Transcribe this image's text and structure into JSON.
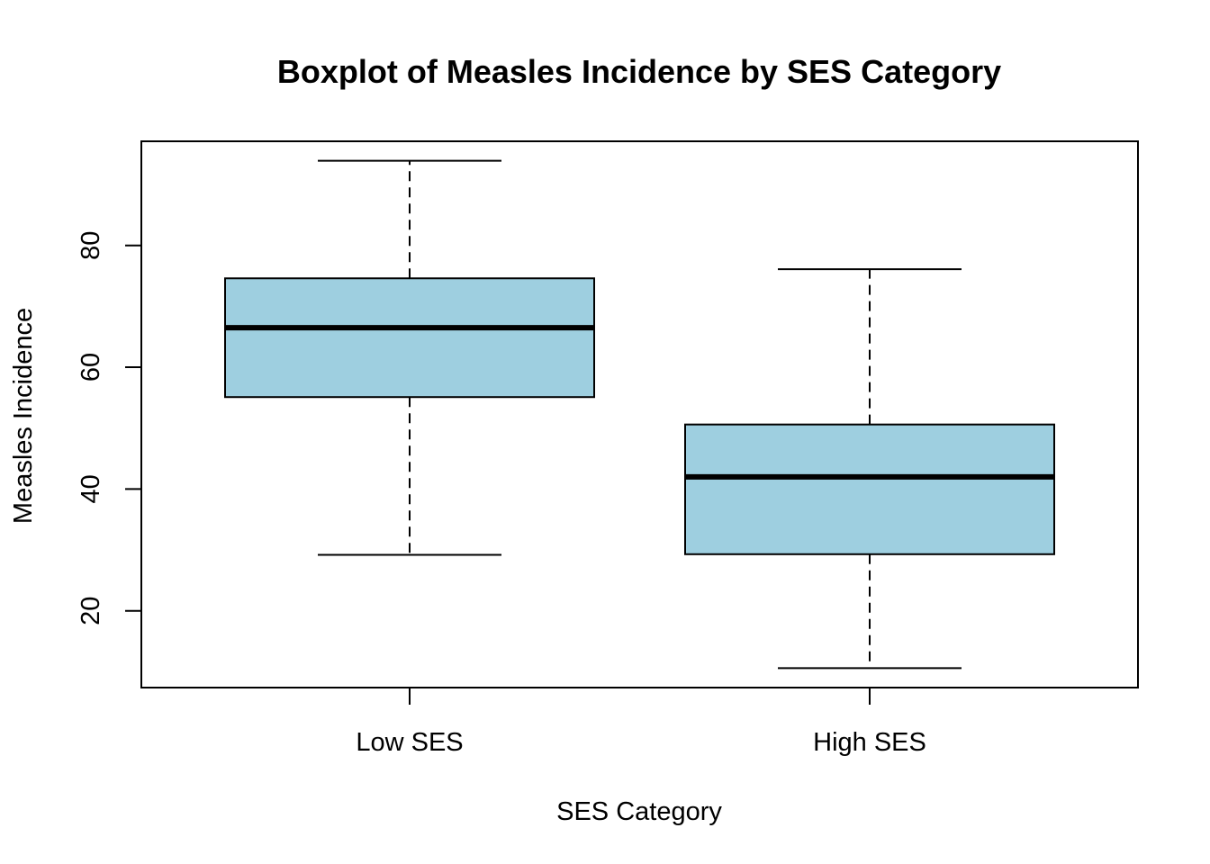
{
  "chart_data": {
    "type": "boxplot",
    "title": "Boxplot of Measles Incidence by SES Category",
    "xlabel": "SES Category",
    "ylabel": "Measles Incidence",
    "categories": [
      "Low SES",
      "High SES"
    ],
    "boxes": [
      {
        "category": "Low SES",
        "whisker_low": 29.2,
        "q1": 55.1,
        "median": 66.5,
        "q3": 74.6,
        "whisker_high": 93.9
      },
      {
        "category": "High SES",
        "whisker_low": 10.6,
        "q1": 29.3,
        "median": 42.0,
        "q3": 50.6,
        "whisker_high": 76.1
      }
    ],
    "yticks": [
      20,
      40,
      60,
      80
    ],
    "ylim": [
      7.4,
      97.1
    ],
    "grid": false,
    "box_fill": "#9ecfe0",
    "line_color": "#000000"
  }
}
